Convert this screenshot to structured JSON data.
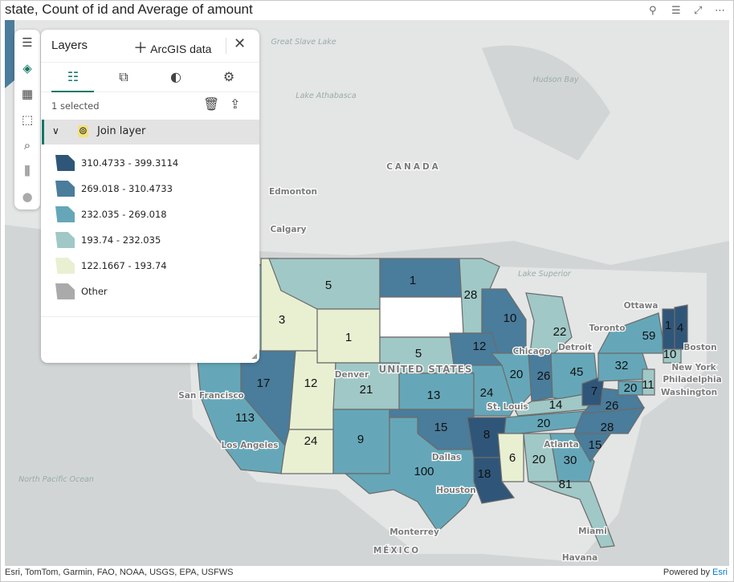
{
  "title": "state, Count of id and Average of amount",
  "header_icons": [
    "pin-icon",
    "filter-icon",
    "focus-mode-icon",
    "more-options-icon"
  ],
  "layers_panel": {
    "title": "Layers",
    "add_label": "ArcGIS data",
    "selected": "1 selected",
    "tabs": [
      "layers-list",
      "shapes",
      "style",
      "settings"
    ],
    "layer_name": "Join layer",
    "legend": [
      {
        "label": "310.4733 - 399.3114",
        "color": "#2f5679"
      },
      {
        "label": "269.018 - 310.4733",
        "color": "#4a7c9b"
      },
      {
        "label": "232.035 - 269.018",
        "color": "#65a7b8"
      },
      {
        "label": "193.74 - 232.035",
        "color": "#a0c8c6"
      },
      {
        "label": "122.1667 - 193.74",
        "color": "#e9f0d2"
      },
      {
        "label": "Other",
        "color": "#aaaaaa"
      }
    ]
  },
  "bucket_colors": [
    "#2f5679",
    "#4a7c9b",
    "#65a7b8",
    "#a0c8c6",
    "#e9f0d2",
    "#aaaaaa",
    "#ffffff"
  ],
  "states": [
    {
      "state": "OR",
      "count": "",
      "bucket": 3
    },
    {
      "state": "CA",
      "count": "113",
      "bucket": 2
    },
    {
      "state": "NV",
      "count": "17",
      "bucket": 1
    },
    {
      "state": "ID",
      "count": "3",
      "bucket": 4
    },
    {
      "state": "MT",
      "count": "5",
      "bucket": 3
    },
    {
      "state": "WY",
      "count": "1",
      "bucket": 4
    },
    {
      "state": "UT",
      "count": "12",
      "bucket": 4
    },
    {
      "state": "AZ",
      "count": "24",
      "bucket": 4
    },
    {
      "state": "CO",
      "count": "21",
      "bucket": 3
    },
    {
      "state": "NM",
      "count": "9",
      "bucket": 2
    },
    {
      "state": "ND",
      "count": "1",
      "bucket": 1
    },
    {
      "state": "SD",
      "count": "",
      "bucket": 6
    },
    {
      "state": "NE",
      "count": "5",
      "bucket": 3
    },
    {
      "state": "KS",
      "count": "13",
      "bucket": 2
    },
    {
      "state": "OK",
      "count": "15",
      "bucket": 1
    },
    {
      "state": "TX",
      "count": "100",
      "bucket": 2
    },
    {
      "state": "MN",
      "count": "28",
      "bucket": 3
    },
    {
      "state": "WI",
      "count": "10",
      "bucket": 1
    },
    {
      "state": "IA",
      "count": "12",
      "bucket": 1
    },
    {
      "state": "MO",
      "count": "24",
      "bucket": 2
    },
    {
      "state": "IL",
      "count": "20",
      "bucket": 2
    },
    {
      "state": "IN",
      "count": "26",
      "bucket": 1
    },
    {
      "state": "MI",
      "count": "22",
      "bucket": 3
    },
    {
      "state": "OH",
      "count": "45",
      "bucket": 2
    },
    {
      "state": "KY",
      "count": "14",
      "bucket": 3
    },
    {
      "state": "TN",
      "count": "20",
      "bucket": 2
    },
    {
      "state": "AR",
      "count": "8",
      "bucket": 0
    },
    {
      "state": "LA",
      "count": "18",
      "bucket": 0
    },
    {
      "state": "MS",
      "count": "6",
      "bucket": 4
    },
    {
      "state": "AL",
      "count": "20",
      "bucket": 3
    },
    {
      "state": "GA",
      "count": "30",
      "bucket": 2
    },
    {
      "state": "FL",
      "count": "81",
      "bucket": 3
    },
    {
      "state": "SC",
      "count": "15",
      "bucket": 1
    },
    {
      "state": "NC",
      "count": "28",
      "bucket": 1
    },
    {
      "state": "VA",
      "count": "26",
      "bucket": 1
    },
    {
      "state": "WV",
      "count": "7",
      "bucket": 0
    },
    {
      "state": "PA",
      "count": "32",
      "bucket": 2
    },
    {
      "state": "NY",
      "count": "59",
      "bucket": 2
    },
    {
      "state": "VT",
      "count": "1",
      "bucket": 0
    },
    {
      "state": "NH",
      "count": "4",
      "bucket": 0
    },
    {
      "state": "CT",
      "count": "10",
      "bucket": 3
    },
    {
      "state": "NJ",
      "count": "11",
      "bucket": 3
    },
    {
      "state": "MD",
      "count": "20",
      "bucket": 2
    }
  ],
  "cities": [
    "Edmonton",
    "Calgary",
    "CANADA",
    "Ottawa",
    "Toronto",
    "Detroit",
    "Chicago",
    "Boston",
    "New York",
    "Philadelphia",
    "Washington",
    "St. Louis",
    "Denver",
    "San Francisco",
    "Los Angeles",
    "Dallas",
    "Houston",
    "Atlanta",
    "Miami",
    "Monterrey",
    "MÉXICO",
    "Havana",
    "UNITED STATES"
  ],
  "water": [
    "Great Slave Lake",
    "Lake Athabasca",
    "Hudson Bay",
    "Lake Superior",
    "North Pacific Ocean"
  ],
  "attribution": "Esri, TomTom, Garmin, FAO, NOAA, USGS, EPA, USFWS",
  "powered_by": "Powered by",
  "powered_brand": "Esri"
}
